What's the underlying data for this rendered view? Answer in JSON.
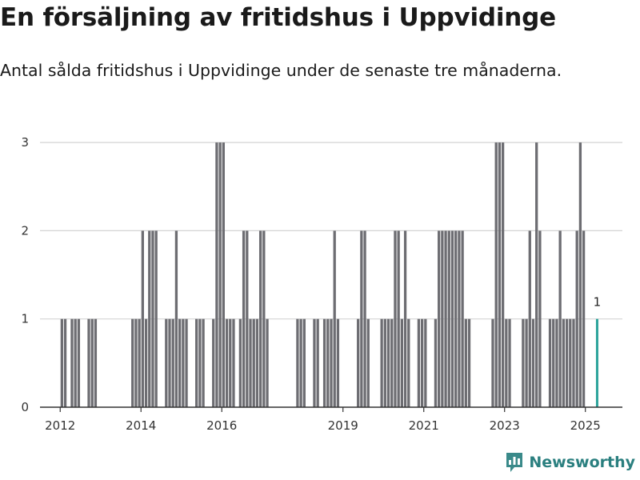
{
  "header": {
    "title": "En försäljning av fritidshus i Uppvidinge",
    "subtitle": "Antal sålda fritidshus i Uppvidinge under de senaste tre månaderna."
  },
  "brand": {
    "name": "Newsworthy",
    "icon": "bar-chart-badge-icon",
    "color": "#3a8a8a"
  },
  "chart_data": {
    "type": "bar",
    "x_unit": "month",
    "x": [
      "2012-01",
      "2012-02",
      "2012-04",
      "2012-05",
      "2012-06",
      "2012-09",
      "2012-10",
      "2012-11",
      "2013-10",
      "2013-11",
      "2013-12",
      "2014-01",
      "2014-02",
      "2014-03",
      "2014-04",
      "2014-05",
      "2014-08",
      "2014-09",
      "2014-10",
      "2014-11",
      "2014-12",
      "2015-01",
      "2015-02",
      "2015-05",
      "2015-06",
      "2015-07",
      "2015-10",
      "2015-11",
      "2015-12",
      "2016-01",
      "2016-02",
      "2016-03",
      "2016-04",
      "2016-06",
      "2016-07",
      "2016-08",
      "2016-09",
      "2016-10",
      "2016-11",
      "2016-12",
      "2017-01",
      "2017-02",
      "2017-11",
      "2017-12",
      "2018-01",
      "2018-04",
      "2018-05",
      "2018-07",
      "2018-08",
      "2018-09",
      "2018-10",
      "2018-11",
      "2019-05",
      "2019-06",
      "2019-07",
      "2019-08",
      "2019-12",
      "2020-01",
      "2020-02",
      "2020-03",
      "2020-04",
      "2020-05",
      "2020-06",
      "2020-07",
      "2020-08",
      "2020-11",
      "2020-12",
      "2021-01",
      "2021-04",
      "2021-05",
      "2021-06",
      "2021-07",
      "2021-08",
      "2021-09",
      "2021-10",
      "2021-11",
      "2021-12",
      "2022-01",
      "2022-02",
      "2022-09",
      "2022-10",
      "2022-11",
      "2022-12",
      "2023-01",
      "2023-02",
      "2023-06",
      "2023-07",
      "2023-08",
      "2023-09",
      "2023-10",
      "2023-11",
      "2024-02",
      "2024-03",
      "2024-04",
      "2024-05",
      "2024-06",
      "2024-07",
      "2024-08",
      "2024-09",
      "2024-10",
      "2024-11",
      "2024-12",
      "2025-04"
    ],
    "values": [
      1,
      1,
      1,
      1,
      1,
      1,
      1,
      1,
      1,
      1,
      1,
      2,
      1,
      2,
      2,
      2,
      1,
      1,
      1,
      2,
      1,
      1,
      1,
      1,
      1,
      1,
      1,
      3,
      3,
      3,
      1,
      1,
      1,
      1,
      2,
      2,
      1,
      1,
      1,
      2,
      2,
      1,
      1,
      1,
      1,
      1,
      1,
      1,
      1,
      1,
      2,
      1,
      1,
      2,
      2,
      1,
      1,
      1,
      1,
      1,
      2,
      2,
      1,
      2,
      1,
      1,
      1,
      1,
      1,
      2,
      2,
      2,
      2,
      2,
      2,
      2,
      2,
      1,
      1,
      1,
      3,
      3,
      3,
      1,
      1,
      1,
      1,
      2,
      1,
      3,
      2,
      1,
      1,
      1,
      2,
      1,
      1,
      1,
      1,
      2,
      3,
      2,
      1
    ],
    "highlight": {
      "x": "2025-04",
      "value": 1,
      "label": "1",
      "color": "#2ba39b"
    },
    "bar_color": "#6d6d72",
    "y_ticks": [
      0,
      1,
      2,
      3
    ],
    "ylim": [
      0,
      3.3
    ],
    "x_ticks": [
      "2012",
      "2014",
      "2016",
      "2019",
      "2021",
      "2023",
      "2025"
    ],
    "x_range": [
      "2011-07",
      "2025-12"
    ],
    "grid": true,
    "xlabel": "",
    "ylabel": ""
  }
}
